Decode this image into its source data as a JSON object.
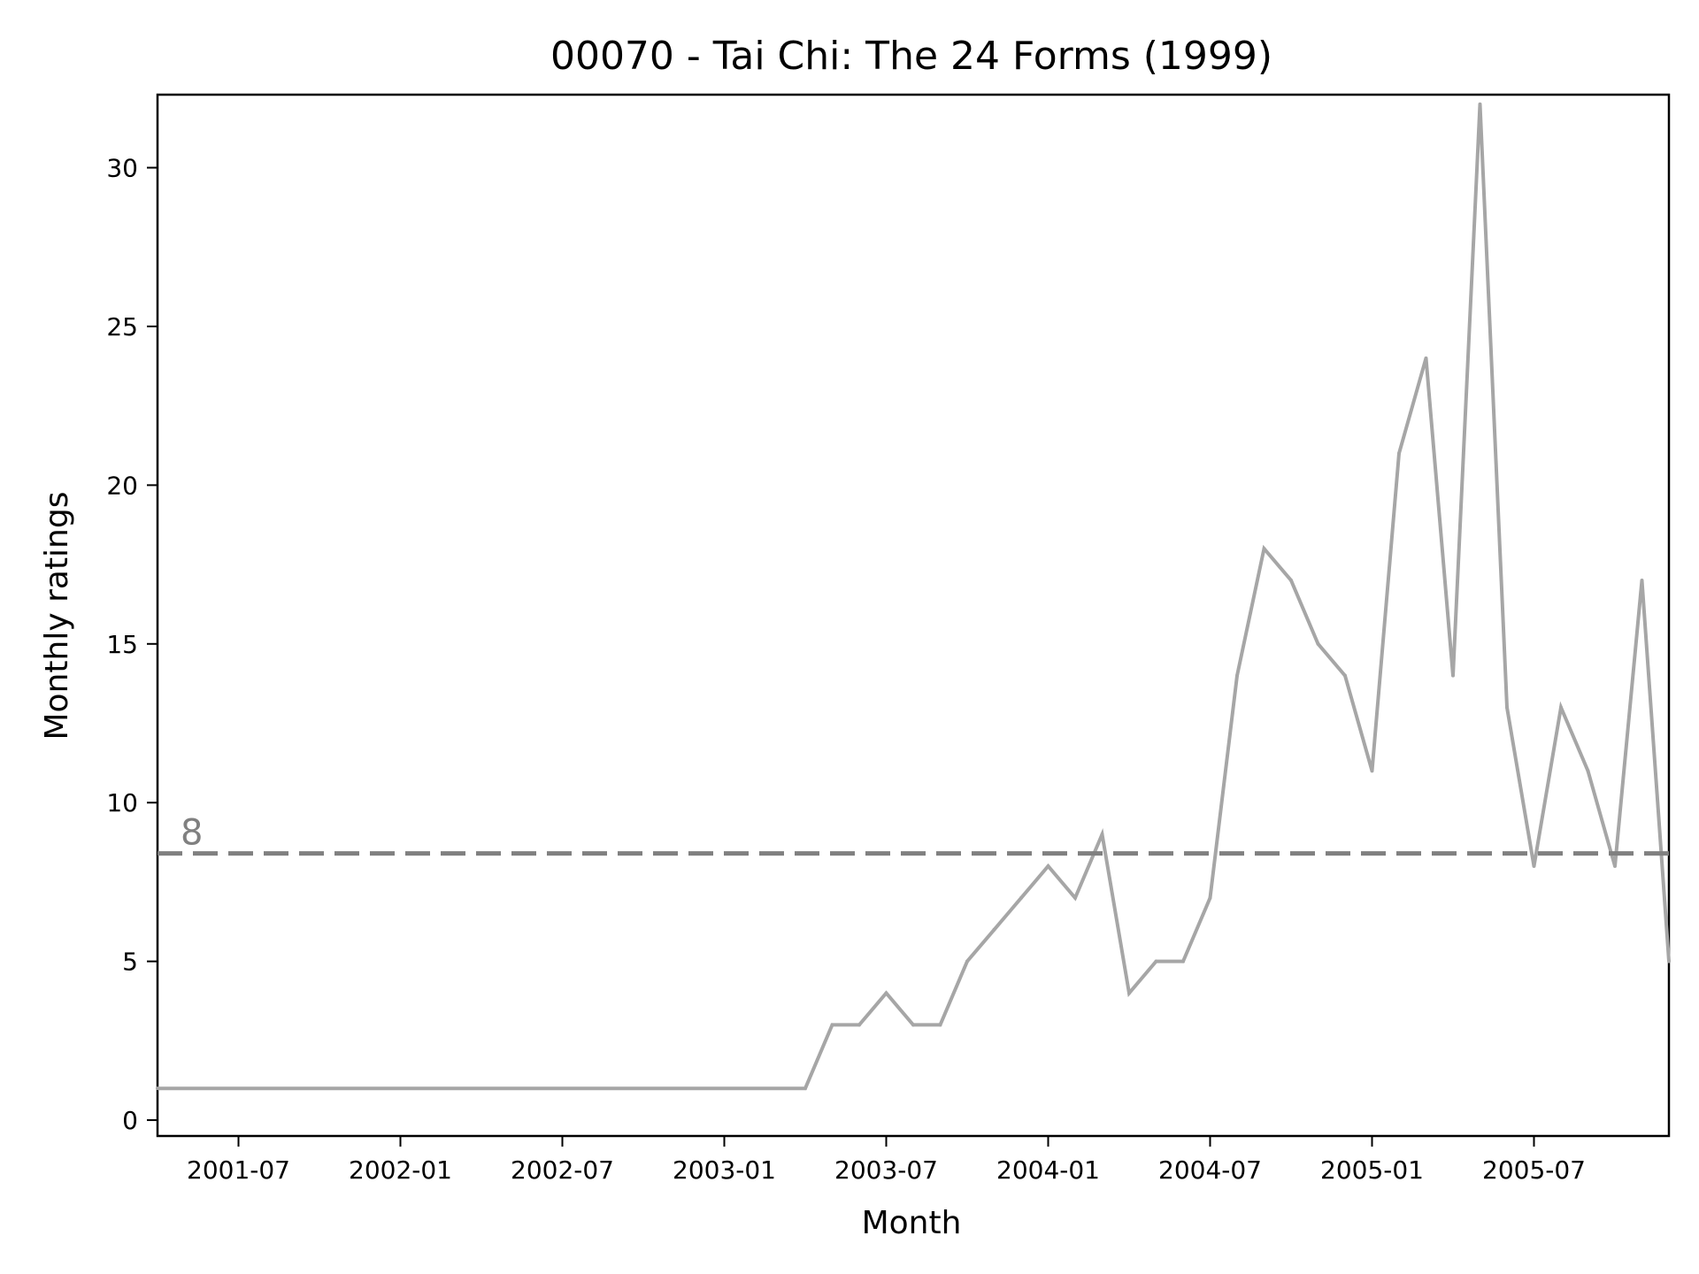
{
  "chart_data": {
    "type": "line",
    "title": "00070 - Tai Chi: The 24 Forms (1999)",
    "xlabel": "Month",
    "ylabel": "Monthly ratings",
    "xlim": [
      "2001-04",
      "2005-12"
    ],
    "ylim": [
      -0.5,
      32.3
    ],
    "x_ticks": [
      "2001-07",
      "2002-01",
      "2002-07",
      "2003-01",
      "2003-07",
      "2004-01",
      "2004-07",
      "2005-01",
      "2005-07"
    ],
    "y_ticks": [
      0,
      5,
      10,
      15,
      20,
      25,
      30
    ],
    "grid": false,
    "series": [
      {
        "color": "#a6a6a6",
        "x": [
          "2001-04",
          "2003-04",
          "2003-05",
          "2003-06",
          "2003-07",
          "2003-08",
          "2003-09",
          "2003-10",
          "2003-11",
          "2003-12",
          "2004-01",
          "2004-02",
          "2004-03",
          "2004-04",
          "2004-05",
          "2004-06",
          "2004-07",
          "2004-08",
          "2004-09",
          "2004-10",
          "2004-11",
          "2004-12",
          "2005-01",
          "2005-02",
          "2005-03",
          "2005-04",
          "2005-05",
          "2005-06",
          "2005-07",
          "2005-08",
          "2005-09",
          "2005-10",
          "2005-11",
          "2005-12"
        ],
        "values": [
          1,
          1,
          3,
          3,
          4,
          3,
          3,
          5,
          6,
          7,
          8,
          7,
          9,
          4,
          5,
          5,
          7,
          14,
          18,
          17,
          15,
          14,
          11,
          21,
          24,
          14,
          32,
          13,
          8,
          13,
          11,
          8,
          17,
          5
        ]
      }
    ],
    "reference_line": {
      "value": 8.4,
      "label": "8",
      "style": "dashed",
      "color": "#808080"
    }
  }
}
